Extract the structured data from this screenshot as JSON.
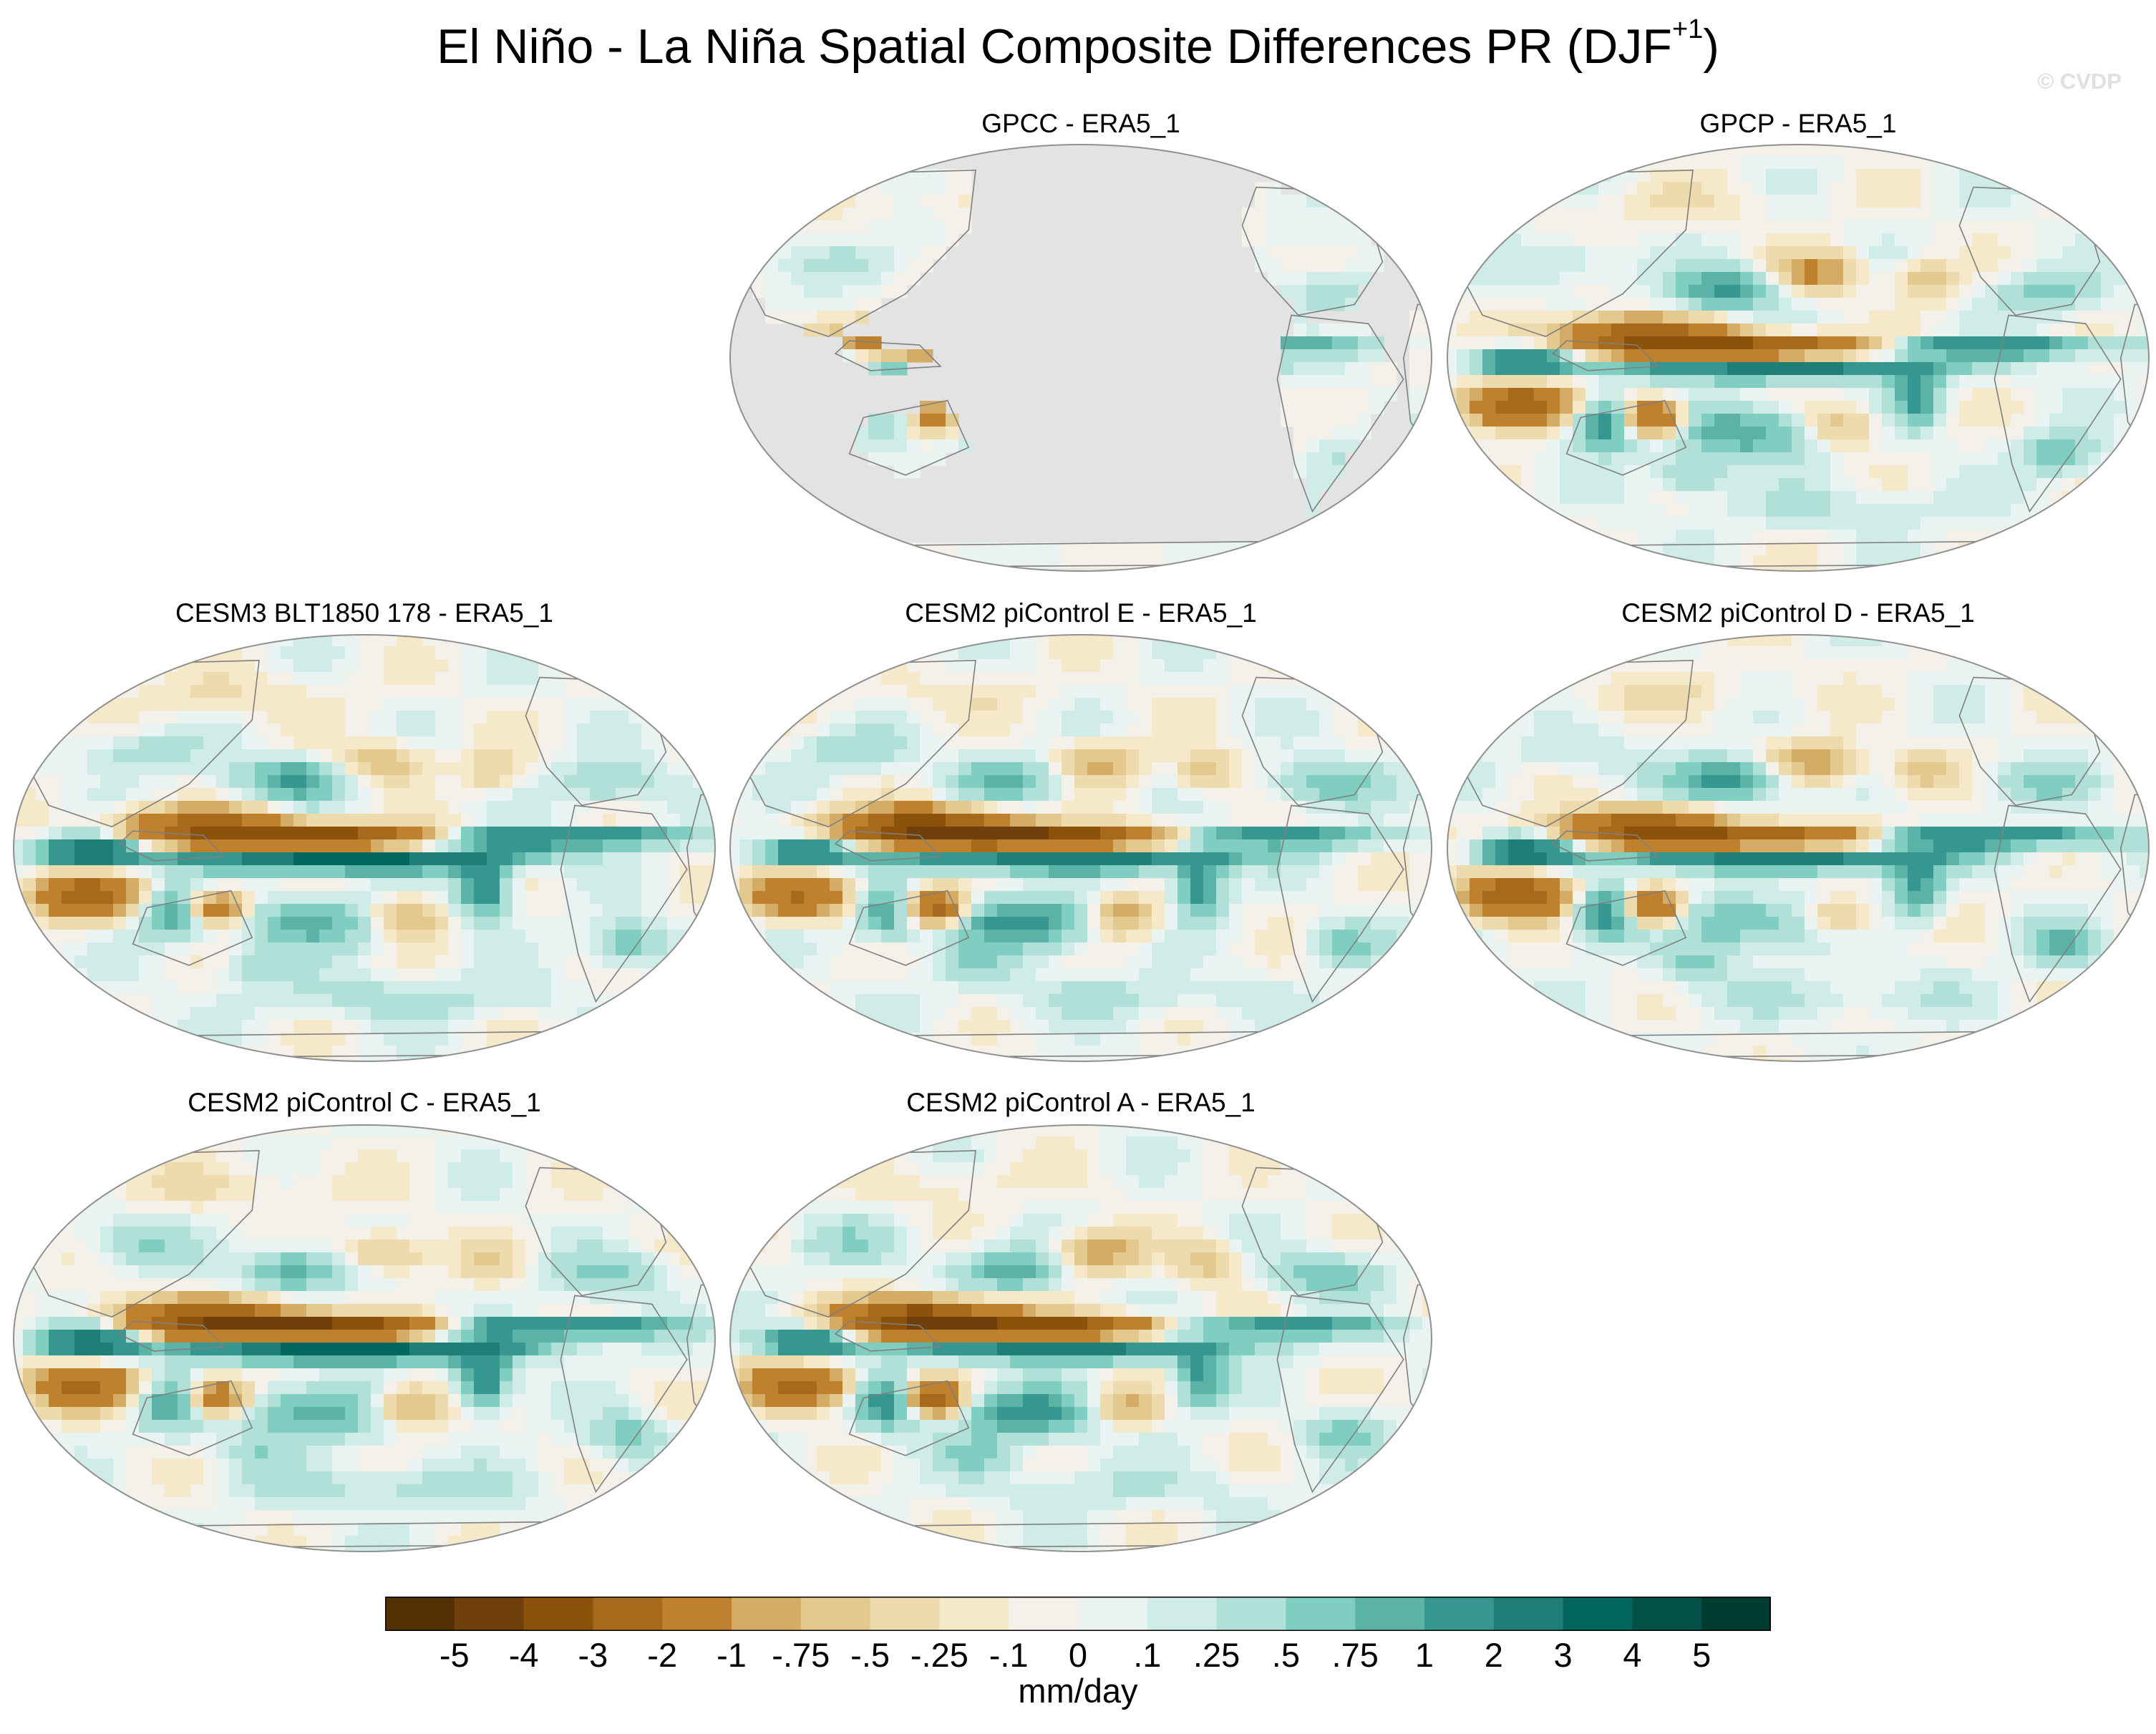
{
  "figure": {
    "title_main": "El Niño - La Niña Spatial Composite Differences PR (DJF",
    "title_sup": "+1",
    "title_close": ")",
    "credit": "© CVDP"
  },
  "panels": [
    {
      "title": "GPCC - ERA5_1",
      "kind": "land_only"
    },
    {
      "title": "GPCP - ERA5_1",
      "kind": "full"
    },
    {
      "title": "CESM3 BLT1850 178 - ERA5_1",
      "kind": "full"
    },
    {
      "title": "CESM2 piControl E - ERA5_1",
      "kind": "full"
    },
    {
      "title": "CESM2 piControl D - ERA5_1",
      "kind": "full"
    },
    {
      "title": "CESM2 piControl C - ERA5_1",
      "kind": "full"
    },
    {
      "title": "CESM2 piControl A - ERA5_1",
      "kind": "full"
    }
  ],
  "colorbar": {
    "units": "mm/day",
    "labels": [
      "-5",
      "-4",
      "-3",
      "-2",
      "-1",
      "-.75",
      "-.5",
      "-.25",
      "-.1",
      "0",
      ".1",
      ".25",
      ".5",
      ".75",
      "1",
      "2",
      "3",
      "4",
      "5"
    ],
    "colors": [
      "#543005",
      "#6f400c",
      "#8c510a",
      "#a76a1d",
      "#bf812d",
      "#d4ac66",
      "#e3c98d",
      "#eedbad",
      "#f5e9ca",
      "#f4f1ea",
      "#e9f3f1",
      "#d0ece7",
      "#b0e0d7",
      "#80cdc1",
      "#5bb3a8",
      "#35978f",
      "#1f7f76",
      "#01665e",
      "#015148",
      "#003c30"
    ]
  },
  "colors": {
    "land_mask_gray": "#e3e3e3",
    "coastline": "#7f7f7f",
    "map_border": "#909090"
  }
}
